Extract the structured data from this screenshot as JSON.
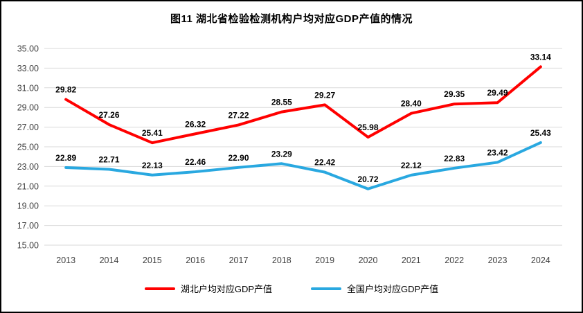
{
  "chart_data": {
    "type": "line",
    "title": "图11  湖北省检验检测机构户均对应GDP产值的情况",
    "categories": [
      "2013",
      "2014",
      "2015",
      "2016",
      "2017",
      "2018",
      "2019",
      "2020",
      "2021",
      "2022",
      "2023",
      "2024"
    ],
    "series": [
      {
        "name": "湖北户均对应GDP产值",
        "color": "#FF0000",
        "values": [
          29.82,
          27.26,
          25.41,
          26.32,
          27.22,
          28.55,
          29.27,
          25.98,
          28.4,
          29.35,
          29.49,
          33.14
        ]
      },
      {
        "name": "全国户均对应GDP产值",
        "color": "#29A8E0",
        "values": [
          22.89,
          22.71,
          22.13,
          22.46,
          22.9,
          23.29,
          22.42,
          20.72,
          22.12,
          22.83,
          23.42,
          25.43
        ]
      }
    ],
    "ylim": [
      15,
      35
    ],
    "ytick_step": 2,
    "ytick_labels": [
      "15.00",
      "17.00",
      "19.00",
      "21.00",
      "23.00",
      "25.00",
      "27.00",
      "29.00",
      "31.00",
      "33.00",
      "35.00"
    ],
    "grid": true,
    "legend_position": "bottom",
    "label_decimals": 2,
    "colors": {
      "gridline": "#D9D9D9",
      "axis_text": "#404040",
      "data_label": "#000000",
      "border": "#000000",
      "background": "#FFFFFF"
    }
  }
}
